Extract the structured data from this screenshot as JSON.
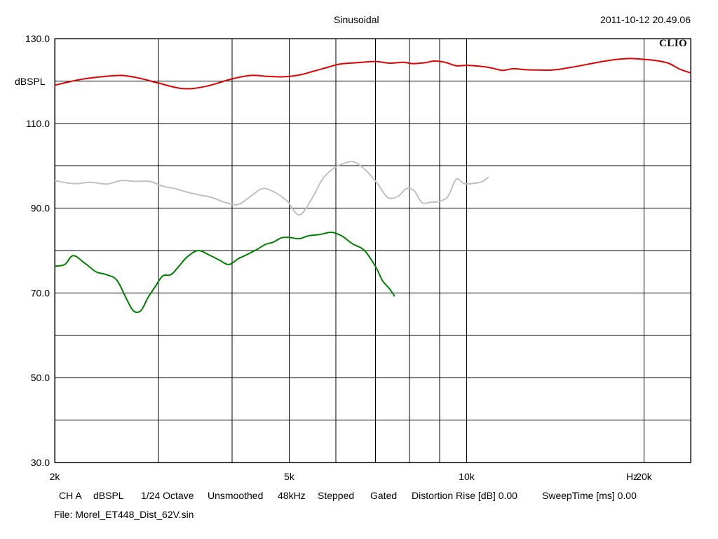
{
  "header": {
    "title": "Sinusoidal",
    "timestamp": "2011-10-12 20.49.06",
    "brand": "CLIO"
  },
  "footer": {
    "channel": "CH A",
    "units": "dBSPL",
    "resolution": "1/24 Octave",
    "smoothing": "Unsmoothed",
    "sample_rate": "48kHz",
    "mode": "Stepped",
    "gating": "Gated",
    "distortion_rise": "Distortion Rise [dB] 0.00",
    "sweep_time": "SweepTime [ms] 0.00",
    "file": "File: Morel_ET448_Dist_62V.sin"
  },
  "chart_data": {
    "type": "line",
    "title": "Sinusoidal",
    "ylabel": "dBSPL",
    "xlabel": "Hz",
    "xscale": "log",
    "xlim": [
      2000,
      24000
    ],
    "ylim": [
      30,
      130
    ],
    "grid": true,
    "y_ticks": [
      30,
      40,
      50,
      60,
      70,
      80,
      90,
      100,
      110,
      120,
      130
    ],
    "y_tick_labels": [
      {
        "value": 130,
        "label": "130.0"
      },
      {
        "value": 110,
        "label": "110.0"
      },
      {
        "value": 90,
        "label": "90.0"
      },
      {
        "value": 70,
        "label": "70.0"
      },
      {
        "value": 50,
        "label": "50.0"
      },
      {
        "value": 30,
        "label": "30.0"
      }
    ],
    "x_gridlines": [
      3000,
      4000,
      5000,
      6000,
      7000,
      8000,
      9000,
      10000,
      20000
    ],
    "x_tick_labels": [
      {
        "value": 2000,
        "label": "2k"
      },
      {
        "value": 5000,
        "label": "5k"
      },
      {
        "value": 10000,
        "label": "10k"
      },
      {
        "value": 20000,
        "label": "20k"
      }
    ],
    "colors": {
      "fundamental": "#e00000",
      "h3": "#c0c0c0",
      "h2": "#008000",
      "grid": "#000000"
    },
    "series": [
      {
        "key": "fundamental",
        "color": "#e00000",
        "x": [
          2000,
          2200,
          2400,
          2600,
          2800,
          3000,
          3300,
          3600,
          4000,
          4300,
          4600,
          4900,
          5200,
          5500,
          5800,
          6100,
          6500,
          7000,
          7400,
          7800,
          8100,
          8500,
          8800,
          9200,
          9600,
          10000,
          10500,
          11000,
          11500,
          12000,
          12500,
          13000,
          14000,
          15000,
          16000,
          17000,
          18000,
          19000,
          20000,
          21000,
          22000,
          23000,
          24000
        ],
        "values": [
          119,
          120.3,
          121,
          121.3,
          120.6,
          119.5,
          118.2,
          118.7,
          120.5,
          121.3,
          121.1,
          121,
          121.4,
          122.3,
          123.2,
          124,
          124.3,
          124.6,
          124.2,
          124.4,
          124.1,
          124.3,
          124.7,
          124.4,
          123.6,
          123.7,
          123.5,
          123.1,
          122.5,
          122.9,
          122.7,
          122.6,
          122.6,
          123.2,
          123.9,
          124.6,
          125.1,
          125.3,
          125.1,
          124.8,
          124.2,
          122.8,
          121.9
        ]
      },
      {
        "key": "h3",
        "color": "#c0c0c0",
        "x": [
          2000,
          2150,
          2300,
          2450,
          2600,
          2750,
          2900,
          3050,
          3200,
          3350,
          3500,
          3700,
          3900,
          4100,
          4300,
          4500,
          4700,
          4950,
          5200,
          5450,
          5700,
          5950,
          6200,
          6450,
          6750,
          7050,
          7350,
          7650,
          7900,
          8150,
          8400,
          8700,
          9000,
          9300,
          9600,
          9900,
          10200,
          10600,
          10900
        ],
        "values": [
          96.5,
          95.8,
          96.1,
          95.7,
          96.5,
          96.3,
          96.3,
          95.2,
          94.6,
          93.8,
          93.2,
          92.5,
          91.3,
          90.9,
          92.8,
          94.6,
          93.9,
          91.8,
          88.4,
          92,
          96.9,
          99.4,
          100.6,
          100.9,
          98.9,
          95.9,
          92.5,
          92.8,
          94.6,
          94.1,
          91.3,
          91.4,
          91.6,
          92.8,
          96.8,
          95.8,
          95.8,
          96.2,
          97.3
        ]
      },
      {
        "key": "h2",
        "color": "#008000",
        "x": [
          2000,
          2080,
          2150,
          2250,
          2350,
          2450,
          2550,
          2650,
          2720,
          2800,
          2880,
          2960,
          3050,
          3150,
          3250,
          3350,
          3500,
          3650,
          3800,
          3950,
          4100,
          4250,
          4400,
          4550,
          4700,
          4850,
          5000,
          5200,
          5400,
          5650,
          5900,
          6150,
          6400,
          6700,
          7000,
          7200,
          7400,
          7550
        ],
        "values": [
          76.3,
          76.7,
          78.8,
          77,
          75,
          74.3,
          73,
          68.5,
          65.8,
          65.8,
          68.9,
          71.4,
          74,
          74.3,
          76.3,
          78.4,
          80,
          79,
          77.8,
          76.7,
          78.1,
          79.1,
          80.2,
          81.4,
          82,
          83,
          83.1,
          82.8,
          83.5,
          83.8,
          84.3,
          83.4,
          81.6,
          80.1,
          76.3,
          72.9,
          71,
          69.2
        ]
      }
    ]
  }
}
